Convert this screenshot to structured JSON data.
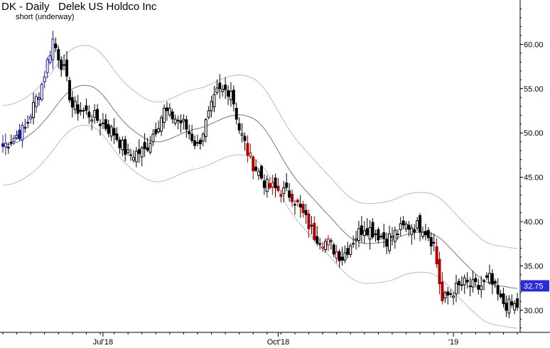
{
  "chart_data": {
    "type": "candlestick",
    "title": "DK - Daily   Delek US Holdco Inc",
    "subtitle": "short (underway)",
    "ylim": [
      27.5,
      65
    ],
    "y_ticks": [
      30,
      35,
      40,
      45,
      50,
      55,
      60
    ],
    "y_tick_labels": [
      "30.00",
      "35.00",
      "40.00",
      "45.00",
      "50.00",
      "55.00",
      "60.00"
    ],
    "x_tick_labels": [
      {
        "label": "Jul'18",
        "bar": 36
      },
      {
        "label": "Oct'18",
        "bar": 99
      },
      {
        "label": "'19",
        "bar": 162
      }
    ],
    "last_price": "32.75",
    "last_price_value": 32.75,
    "colors": {
      "background": "#ffffff",
      "candle_default": "#000000",
      "candle_up_strong": "#1a1aa0",
      "candle_down_strong": "#b00000",
      "moving_average": "#777777",
      "bands": "#bbbbbb",
      "price_tag": "#2a2ad6",
      "axis": "#000000"
    },
    "close_anchors": [
      {
        "bar": 0,
        "close": 48.5
      },
      {
        "bar": 8,
        "close": 50.5
      },
      {
        "bar": 14,
        "close": 55.5
      },
      {
        "bar": 18,
        "close": 60.5
      },
      {
        "bar": 22,
        "close": 57.0
      },
      {
        "bar": 25,
        "close": 53.0
      },
      {
        "bar": 32,
        "close": 52.0
      },
      {
        "bar": 40,
        "close": 50.0
      },
      {
        "bar": 45,
        "close": 47.5
      },
      {
        "bar": 51,
        "close": 48.0
      },
      {
        "bar": 58,
        "close": 52.5
      },
      {
        "bar": 65,
        "close": 51.0
      },
      {
        "bar": 70,
        "close": 48.5
      },
      {
        "bar": 77,
        "close": 54.5
      },
      {
        "bar": 82,
        "close": 55.0
      },
      {
        "bar": 85,
        "close": 50.5
      },
      {
        "bar": 89,
        "close": 47.0
      },
      {
        "bar": 95,
        "close": 44.0
      },
      {
        "bar": 104,
        "close": 43.0
      },
      {
        "bar": 112,
        "close": 38.5
      },
      {
        "bar": 117,
        "close": 37.5
      },
      {
        "bar": 122,
        "close": 36.0
      },
      {
        "bar": 126,
        "close": 38.0
      },
      {
        "bar": 130,
        "close": 39.5
      },
      {
        "bar": 138,
        "close": 38.0
      },
      {
        "bar": 145,
        "close": 39.5
      },
      {
        "bar": 151,
        "close": 39.5
      },
      {
        "bar": 155,
        "close": 37.5
      },
      {
        "bar": 158,
        "close": 31.0
      },
      {
        "bar": 161,
        "close": 32.0
      },
      {
        "bar": 166,
        "close": 33.0
      },
      {
        "bar": 171,
        "close": 32.5
      },
      {
        "bar": 175,
        "close": 33.5
      },
      {
        "bar": 179,
        "close": 31.0
      },
      {
        "bar": 182,
        "close": 30.5
      }
    ],
    "ma_period": 20,
    "band_width": 4.5,
    "blue_bars": [
      0,
      1,
      4,
      6,
      7,
      10,
      12,
      14,
      15,
      16,
      17,
      18
    ],
    "red_bars": [
      88,
      89,
      90,
      96,
      97,
      99,
      100,
      104,
      106,
      108,
      110,
      112,
      115,
      117,
      120,
      156,
      157,
      158
    ]
  }
}
